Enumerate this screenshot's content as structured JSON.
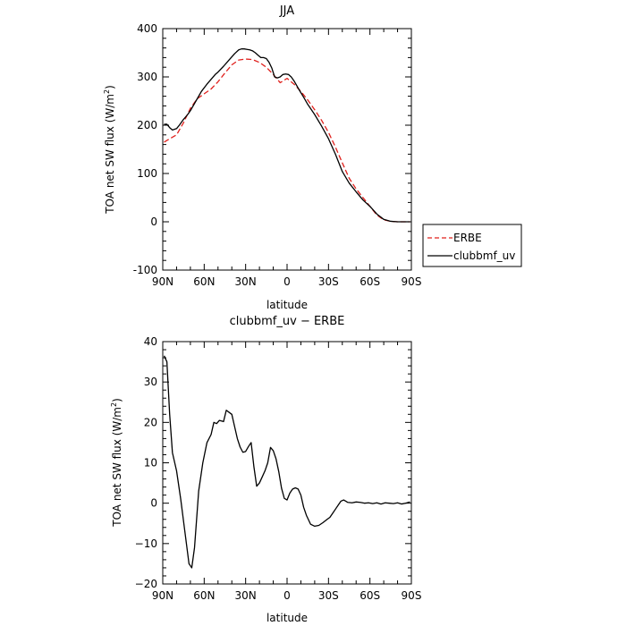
{
  "chart_data": [
    {
      "type": "line",
      "title": "JJA",
      "xlabel": "latitude",
      "ylabel_main": "TOA net SW flux (W/m",
      "ylabel_sup": "2",
      "ylabel_tail": ")",
      "xlim": [
        -90,
        90
      ],
      "ylim": [
        -100,
        400
      ],
      "xticks": [
        -90,
        -60,
        -30,
        0,
        30,
        60,
        90
      ],
      "xtick_labels": [
        "90N",
        "60N",
        "30N",
        "0",
        "30S",
        "60S",
        "90S"
      ],
      "yticks": [
        -100,
        0,
        100,
        200,
        300,
        400
      ],
      "ytick_labels": [
        "-100",
        "0",
        "100",
        "200",
        "300",
        "400"
      ],
      "legend_position": "outside-right",
      "series": [
        {
          "name": "ERBE",
          "color": "#e0201c",
          "dash": "dashed",
          "x": [
            -89,
            -85,
            -80,
            -75,
            -70,
            -65,
            -60,
            -55,
            -50,
            -45,
            -40,
            -35,
            -30,
            -25,
            -20,
            -15,
            -10,
            -5,
            0,
            5,
            10,
            15,
            20,
            25,
            30,
            35,
            40,
            45,
            50,
            55,
            60,
            65,
            70,
            75,
            80,
            85,
            89
          ],
          "y": [
            165,
            172,
            180,
            205,
            235,
            255,
            265,
            275,
            290,
            308,
            325,
            335,
            337,
            336,
            330,
            320,
            305,
            288,
            297,
            285,
            270,
            252,
            232,
            210,
            185,
            155,
            122,
            90,
            68,
            50,
            32,
            14,
            4,
            1,
            0,
            0,
            0
          ]
        },
        {
          "name": "clubbmf_uv",
          "color": "#000000",
          "dash": "solid",
          "x": [
            -89,
            -87,
            -85,
            -83,
            -80,
            -78,
            -75,
            -72,
            -70,
            -66,
            -62,
            -58,
            -55,
            -52,
            -50,
            -46,
            -42,
            -38,
            -35,
            -33,
            -31,
            -29,
            -27,
            -25,
            -23,
            -21,
            -19,
            -17,
            -15,
            -13,
            -11,
            -9,
            -7,
            -5,
            -3,
            -1,
            1,
            3,
            5,
            7,
            9,
            12,
            15,
            20,
            25,
            30,
            35,
            40,
            45,
            50,
            55,
            60,
            65,
            70,
            75,
            80,
            85,
            89
          ],
          "y": [
            202,
            202,
            195,
            190,
            193,
            200,
            212,
            222,
            230,
            250,
            270,
            285,
            295,
            305,
            310,
            322,
            335,
            348,
            356,
            358,
            358,
            357,
            356,
            354,
            350,
            345,
            340,
            340,
            338,
            330,
            318,
            300,
            298,
            300,
            305,
            306,
            305,
            300,
            292,
            282,
            272,
            258,
            243,
            222,
            198,
            172,
            140,
            104,
            80,
            62,
            45,
            32,
            16,
            5,
            1,
            0,
            0,
            0
          ]
        }
      ]
    },
    {
      "type": "line",
      "title": "clubbmf_uv − ERBE",
      "xlabel": "latitude",
      "ylabel_main": "TOA net SW flux (W/m",
      "ylabel_sup": "2",
      "ylabel_tail": ")",
      "xlim": [
        -90,
        90
      ],
      "ylim": [
        -20,
        40
      ],
      "xticks": [
        -90,
        -60,
        -30,
        0,
        30,
        60,
        90
      ],
      "xtick_labels": [
        "90N",
        "60N",
        "30N",
        "0",
        "30S",
        "60S",
        "90S"
      ],
      "yticks": [
        -20,
        -10,
        0,
        10,
        20,
        30,
        40
      ],
      "ytick_labels": [
        "−20",
        "−10",
        "0",
        "10",
        "20",
        "30",
        "40"
      ],
      "series": [
        {
          "color": "#000000",
          "dash": "solid",
          "x": [
            -89,
            -87,
            -85,
            -83,
            -80,
            -77,
            -74,
            -71,
            -69,
            -67,
            -64,
            -61,
            -58,
            -55,
            -53,
            -51,
            -49,
            -46,
            -44,
            -42,
            -40,
            -38,
            -36,
            -34,
            -32,
            -30,
            -28,
            -26,
            -24,
            -22,
            -20,
            -18,
            -16,
            -14,
            -12,
            -10,
            -8,
            -6,
            -4,
            -2,
            0,
            2,
            4,
            6,
            8,
            10,
            12,
            14,
            17,
            20,
            23,
            26,
            29,
            31,
            33,
            35,
            37,
            39,
            41,
            44,
            47,
            50,
            53,
            56,
            59,
            62,
            65,
            68,
            71,
            74,
            77,
            80,
            83,
            86,
            89
          ],
          "y": [
            36.5,
            35,
            22,
            12.5,
            8,
            1,
            -7,
            -15,
            -16,
            -11,
            3,
            10,
            15,
            17,
            20,
            19.7,
            20.5,
            20.2,
            23,
            22.5,
            22,
            19,
            16,
            13.9,
            12.6,
            12.8,
            14,
            15,
            9,
            4.2,
            5,
            6.5,
            8,
            10,
            13.8,
            13,
            11,
            7.8,
            3.7,
            1.2,
            0.8,
            2.5,
            3.5,
            3.8,
            3.5,
            2,
            -1,
            -3,
            -5.2,
            -5.7,
            -5.5,
            -4.8,
            -4,
            -3.5,
            -2.5,
            -1.5,
            -0.5,
            0.5,
            0.8,
            0.2,
            0.1,
            0.3,
            0.2,
            0,
            0.1,
            -0.1,
            0.1,
            -0.2,
            0.1,
            0,
            -0.1,
            0.1,
            -0.2,
            0,
            0.3
          ]
        }
      ]
    }
  ]
}
